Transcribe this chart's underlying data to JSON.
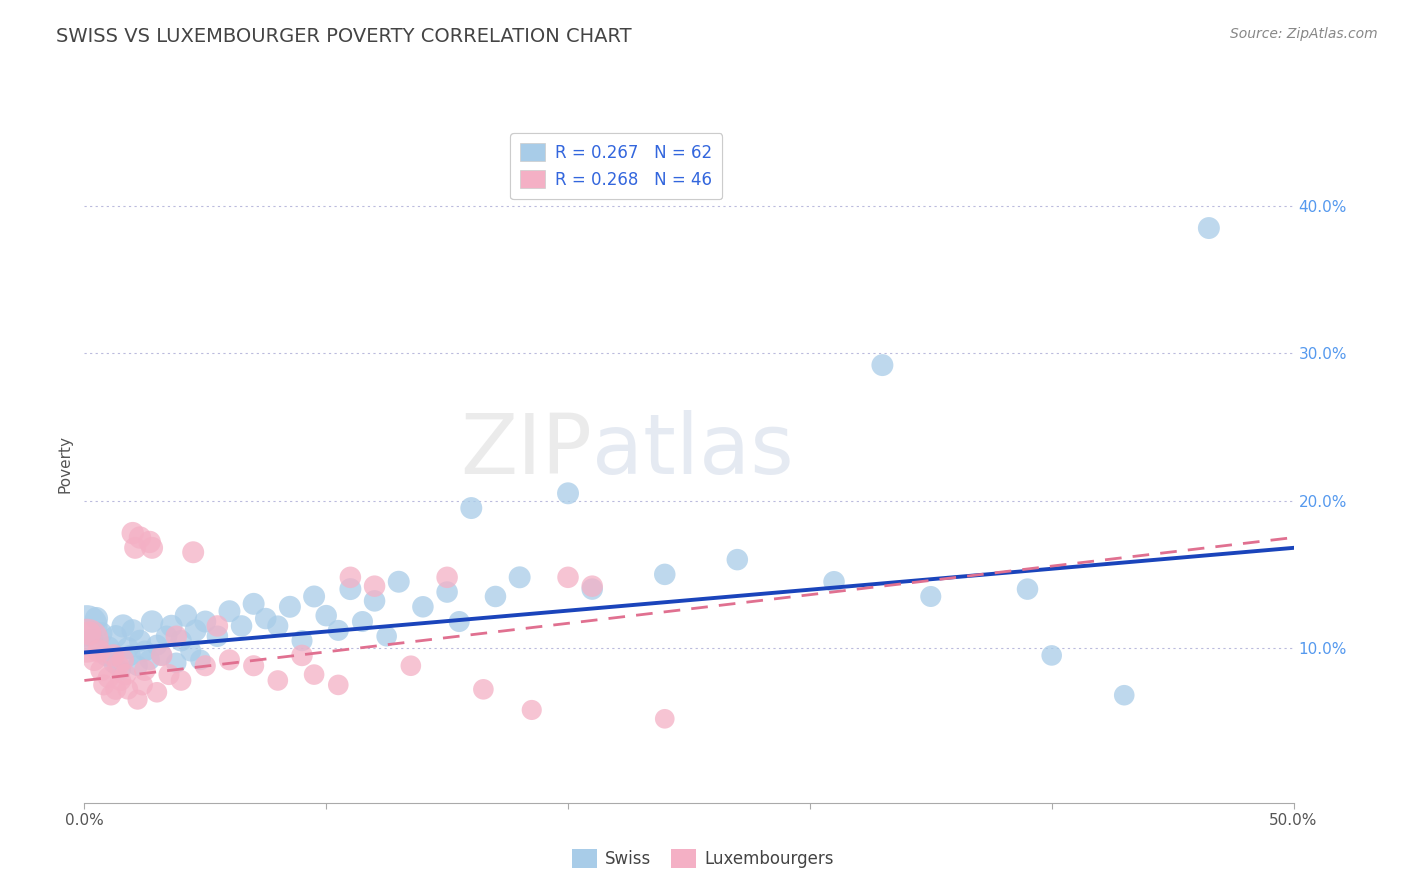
{
  "title": "SWISS VS LUXEMBOURGER POVERTY CORRELATION CHART",
  "source": "Source: ZipAtlas.com",
  "ylabel": "Poverty",
  "xlim": [
    0.0,
    0.5
  ],
  "ylim": [
    -0.005,
    0.455
  ],
  "xticks": [
    0.0,
    0.1,
    0.2,
    0.3,
    0.4,
    0.5
  ],
  "yticks_right": [
    0.1,
    0.2,
    0.3,
    0.4
  ],
  "ytick_labels_right": [
    "10.0%",
    "20.0%",
    "30.0%",
    "40.0%"
  ],
  "xtick_labels": [
    "0.0%",
    "",
    "",
    "",
    "",
    "50.0%"
  ],
  "swiss_color": "#a8cce8",
  "luxembourger_color": "#f4b0c5",
  "swiss_line_color": "#1a44bb",
  "luxembourger_line_color": "#e07090",
  "swiss_R": 0.267,
  "swiss_N": 62,
  "luxembourger_R": 0.268,
  "luxembourger_N": 46,
  "watermark": "ZIPatlas",
  "background_color": "#ffffff",
  "swiss_line_x0": 0.0,
  "swiss_line_y0": 0.097,
  "swiss_line_x1": 0.5,
  "swiss_line_y1": 0.168,
  "lux_line_x0": 0.0,
  "lux_line_y0": 0.078,
  "lux_line_x1": 0.5,
  "lux_line_y1": 0.175,
  "swiss_points": [
    [
      0.001,
      0.115
    ],
    [
      0.003,
      0.105
    ],
    [
      0.005,
      0.12
    ],
    [
      0.007,
      0.11
    ],
    [
      0.009,
      0.095
    ],
    [
      0.01,
      0.1
    ],
    [
      0.012,
      0.09
    ],
    [
      0.013,
      0.108
    ],
    [
      0.015,
      0.085
    ],
    [
      0.016,
      0.115
    ],
    [
      0.018,
      0.1
    ],
    [
      0.019,
      0.095
    ],
    [
      0.02,
      0.112
    ],
    [
      0.022,
      0.088
    ],
    [
      0.023,
      0.105
    ],
    [
      0.025,
      0.098
    ],
    [
      0.027,
      0.092
    ],
    [
      0.028,
      0.118
    ],
    [
      0.03,
      0.102
    ],
    [
      0.032,
      0.095
    ],
    [
      0.034,
      0.108
    ],
    [
      0.036,
      0.115
    ],
    [
      0.038,
      0.09
    ],
    [
      0.04,
      0.105
    ],
    [
      0.042,
      0.122
    ],
    [
      0.044,
      0.098
    ],
    [
      0.046,
      0.112
    ],
    [
      0.048,
      0.092
    ],
    [
      0.05,
      0.118
    ],
    [
      0.055,
      0.108
    ],
    [
      0.06,
      0.125
    ],
    [
      0.065,
      0.115
    ],
    [
      0.07,
      0.13
    ],
    [
      0.075,
      0.12
    ],
    [
      0.08,
      0.115
    ],
    [
      0.085,
      0.128
    ],
    [
      0.09,
      0.105
    ],
    [
      0.095,
      0.135
    ],
    [
      0.1,
      0.122
    ],
    [
      0.105,
      0.112
    ],
    [
      0.11,
      0.14
    ],
    [
      0.115,
      0.118
    ],
    [
      0.12,
      0.132
    ],
    [
      0.125,
      0.108
    ],
    [
      0.13,
      0.145
    ],
    [
      0.14,
      0.128
    ],
    [
      0.15,
      0.138
    ],
    [
      0.155,
      0.118
    ],
    [
      0.16,
      0.195
    ],
    [
      0.17,
      0.135
    ],
    [
      0.18,
      0.148
    ],
    [
      0.2,
      0.205
    ],
    [
      0.21,
      0.14
    ],
    [
      0.24,
      0.15
    ],
    [
      0.27,
      0.16
    ],
    [
      0.31,
      0.145
    ],
    [
      0.33,
      0.292
    ],
    [
      0.35,
      0.135
    ],
    [
      0.39,
      0.14
    ],
    [
      0.4,
      0.095
    ],
    [
      0.43,
      0.068
    ],
    [
      0.465,
      0.385
    ]
  ],
  "luxembourger_points": [
    [
      0.001,
      0.105
    ],
    [
      0.002,
      0.11
    ],
    [
      0.004,
      0.092
    ],
    [
      0.006,
      0.098
    ],
    [
      0.007,
      0.085
    ],
    [
      0.008,
      0.075
    ],
    [
      0.01,
      0.08
    ],
    [
      0.011,
      0.068
    ],
    [
      0.012,
      0.095
    ],
    [
      0.013,
      0.072
    ],
    [
      0.014,
      0.088
    ],
    [
      0.015,
      0.078
    ],
    [
      0.016,
      0.092
    ],
    [
      0.017,
      0.082
    ],
    [
      0.018,
      0.072
    ],
    [
      0.02,
      0.178
    ],
    [
      0.021,
      0.168
    ],
    [
      0.022,
      0.065
    ],
    [
      0.023,
      0.175
    ],
    [
      0.024,
      0.075
    ],
    [
      0.025,
      0.085
    ],
    [
      0.027,
      0.172
    ],
    [
      0.028,
      0.168
    ],
    [
      0.03,
      0.07
    ],
    [
      0.032,
      0.095
    ],
    [
      0.035,
      0.082
    ],
    [
      0.038,
      0.108
    ],
    [
      0.04,
      0.078
    ],
    [
      0.045,
      0.165
    ],
    [
      0.05,
      0.088
    ],
    [
      0.055,
      0.115
    ],
    [
      0.06,
      0.092
    ],
    [
      0.07,
      0.088
    ],
    [
      0.08,
      0.078
    ],
    [
      0.09,
      0.095
    ],
    [
      0.095,
      0.082
    ],
    [
      0.105,
      0.075
    ],
    [
      0.11,
      0.148
    ],
    [
      0.12,
      0.142
    ],
    [
      0.135,
      0.088
    ],
    [
      0.15,
      0.148
    ],
    [
      0.165,
      0.072
    ],
    [
      0.185,
      0.058
    ],
    [
      0.2,
      0.148
    ],
    [
      0.21,
      0.142
    ],
    [
      0.24,
      0.052
    ]
  ],
  "swiss_bubble_sizes": [
    900,
    300,
    280,
    260,
    240,
    280,
    220,
    260,
    220,
    280,
    250,
    230,
    260,
    220,
    250,
    230,
    220,
    260,
    230,
    220,
    240,
    260,
    220,
    240,
    260,
    230,
    250,
    220,
    250,
    240,
    250,
    240,
    250,
    240,
    230,
    250,
    230,
    250,
    240,
    230,
    250,
    230,
    240,
    220,
    250,
    240,
    240,
    230,
    250,
    240,
    250,
    250,
    240,
    240,
    240,
    240,
    250,
    230,
    240,
    220,
    220,
    250
  ],
  "lux_bubble_sizes": [
    1000,
    300,
    260,
    280,
    250,
    230,
    240,
    220,
    260,
    230,
    250,
    230,
    250,
    240,
    220,
    260,
    250,
    210,
    260,
    230,
    240,
    260,
    250,
    220,
    240,
    230,
    240,
    220,
    250,
    230,
    240,
    230,
    230,
    220,
    240,
    220,
    220,
    240,
    240,
    220,
    240,
    220,
    210,
    240,
    240,
    200
  ]
}
